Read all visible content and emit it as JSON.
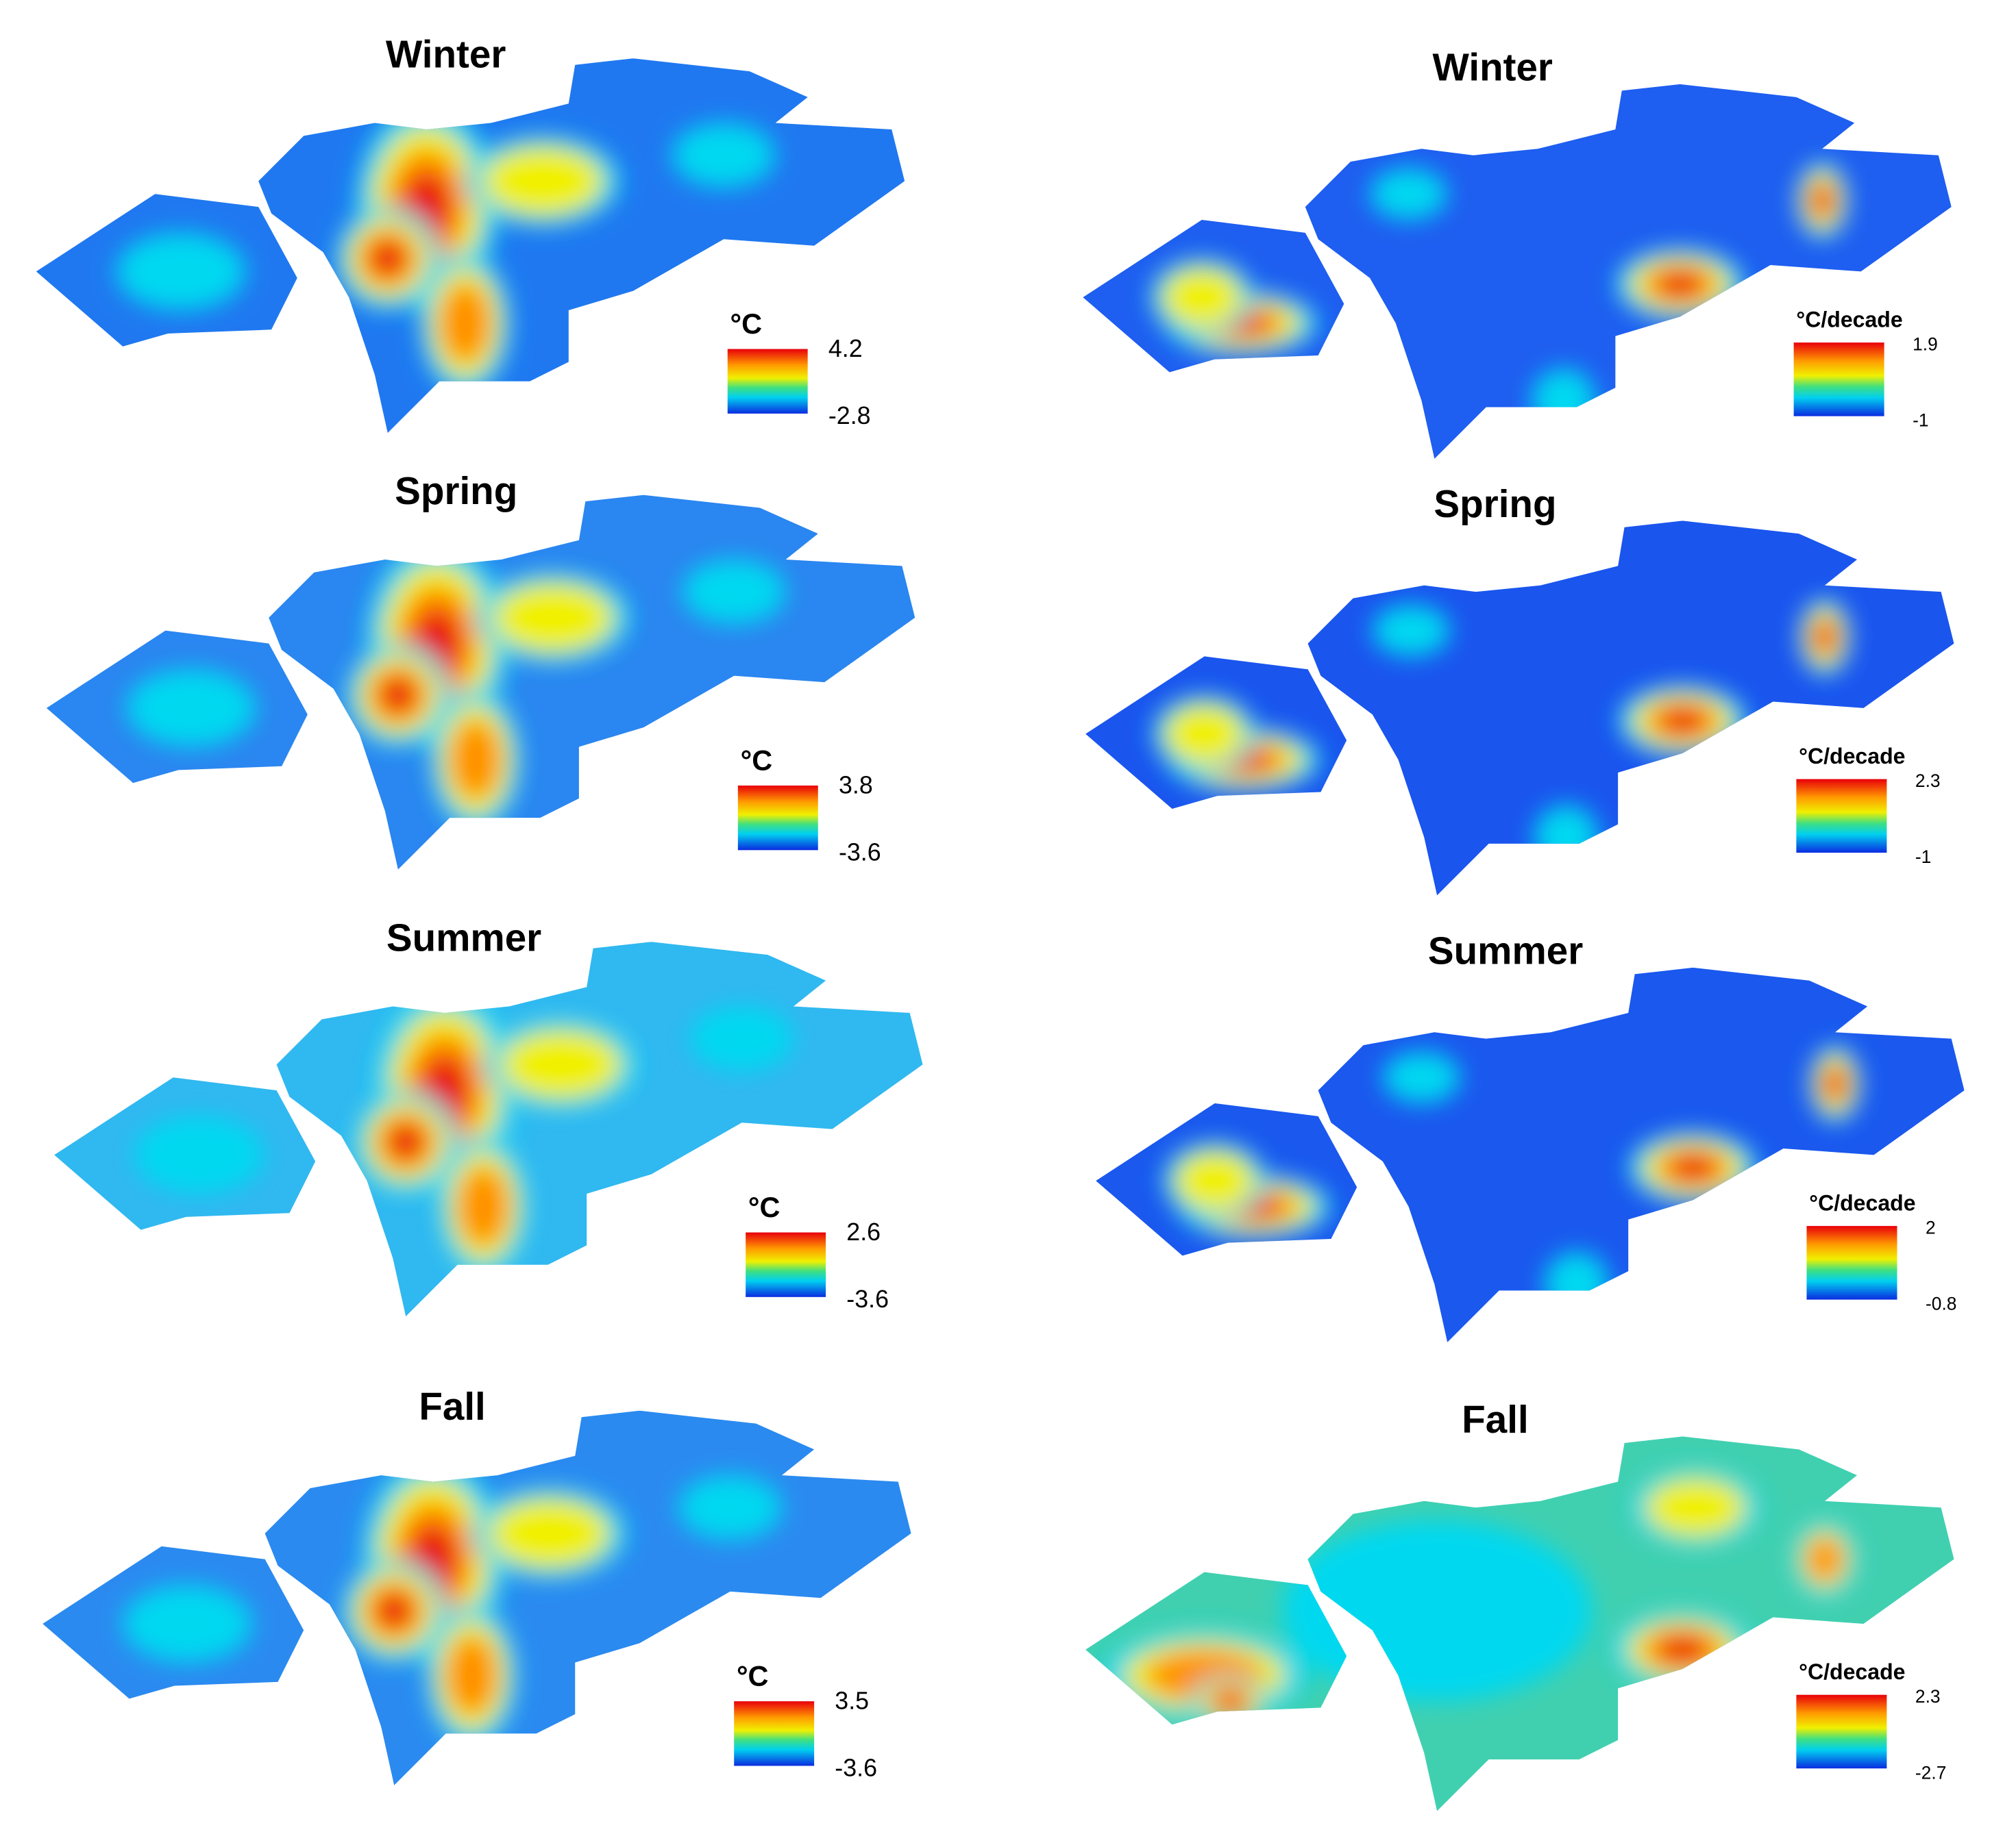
{
  "panels": [
    {
      "title": "Winter",
      "unit": "°C",
      "max": 4.2,
      "min": -2.8
    },
    {
      "title": "Spring",
      "unit": "°C",
      "max": 3.8,
      "min": -3.6
    },
    {
      "title": "Summer",
      "unit": "°C",
      "max": 2.6,
      "min": -3.6
    },
    {
      "title": "Fall",
      "unit": "°C",
      "max": 3.5,
      "min": -3.6
    },
    {
      "title": "Winter",
      "unit": "°C/decade",
      "max": 1.9,
      "min": -1
    },
    {
      "title": "Spring",
      "unit": "°C/decade",
      "max": 2.3,
      "min": -1
    },
    {
      "title": "Summer",
      "unit": "°C/decade",
      "max": 2,
      "min": -0.8
    },
    {
      "title": "Fall",
      "unit": "°C/decade",
      "max": 2.3,
      "min": -2.7
    }
  ]
}
